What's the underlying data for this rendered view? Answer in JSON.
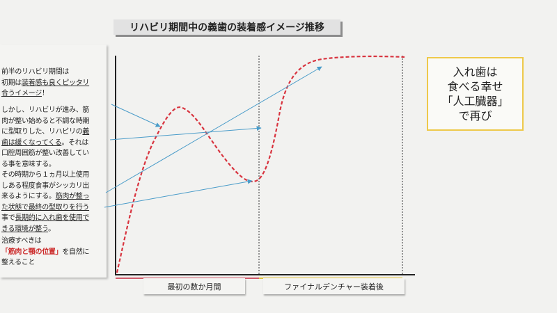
{
  "title": "リハビリ期間中の義歯の装着感イメージ推移",
  "left_notes": [
    {
      "lines": [
        [
          {
            "t": "前半のリハビリ期間は"
          }
        ],
        [
          {
            "t": "初期は"
          },
          {
            "t": "装着感も良くピッタリ",
            "style": "ul"
          }
        ],
        [
          {
            "t": "合うイメージ",
            "style": "ul"
          },
          {
            "t": "！"
          }
        ]
      ]
    },
    {
      "lines": [
        [
          {
            "t": "しかし、リハビリが進み、筋"
          }
        ],
        [
          {
            "t": "肉が整い始めると不調な時期"
          }
        ],
        [
          {
            "t": "に型取りした、リハビリの"
          },
          {
            "t": "義",
            "style": "ul"
          }
        ],
        [
          {
            "t": "歯は緩くなってくる",
            "style": "ul"
          },
          {
            "t": "。それは"
          }
        ],
        [
          {
            "t": "口腔周囲筋が整い改善してい"
          }
        ],
        [
          {
            "t": "る事を意味する。"
          }
        ]
      ]
    },
    {
      "lines": [
        [
          {
            "t": "その時期から１ヵ月以上使用"
          }
        ],
        [
          {
            "t": "しある程度食事がシッカリ出"
          }
        ],
        [
          {
            "t": "来るようにする。"
          },
          {
            "t": "筋肉が整っ",
            "style": "ul"
          }
        ],
        [
          {
            "t": "た状態で最終の型取りを行う",
            "style": "ul"
          }
        ],
        [
          {
            "t": "事で"
          },
          {
            "t": "長期的に入れ歯を使用で",
            "style": "ul"
          }
        ],
        [
          {
            "t": "きる環境が整う",
            "style": "ul"
          },
          {
            "t": "。"
          }
        ]
      ]
    },
    {
      "lines": [
        [
          {
            "t": "治療すべきは"
          }
        ],
        [
          {
            "t": "「筋肉と顎の位置」",
            "style": "red"
          },
          {
            "t": "を自然に"
          }
        ],
        [
          {
            "t": "整えること"
          }
        ]
      ]
    }
  ],
  "right_box": {
    "lines": [
      "入れ歯は",
      "食べる幸せ",
      "「人工臓器」",
      "で再び"
    ]
  },
  "phases": [
    {
      "label": "最初の数か月間",
      "underline_color": "#d05a6a"
    },
    {
      "label": "ファイナルデンチャー装着後",
      "underline_color": "#e2c23a"
    }
  ],
  "colors": {
    "curve": "#d8343f",
    "arrows": "#4a9cc9",
    "axis": "#222222",
    "divider": "#333333",
    "right_box_border": "#eec94a",
    "title_bg": "#e2e2e2"
  }
}
